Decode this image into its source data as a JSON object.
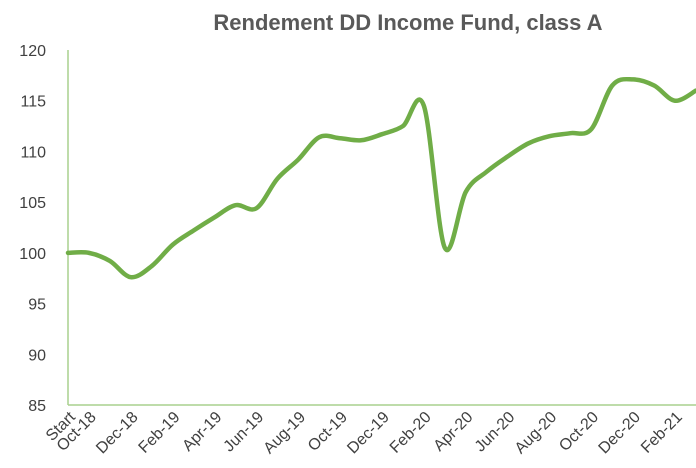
{
  "chart_data": {
    "type": "line",
    "title": "Rendement DD Income Fund, class A",
    "categories": [
      "Start",
      "Oct-18",
      null,
      "Dec-18",
      null,
      "Feb-19",
      null,
      "Apr-19",
      null,
      "Jun-19",
      null,
      "Aug-19",
      null,
      "Oct-19",
      null,
      "Dec-19",
      null,
      "Feb-20",
      null,
      "Apr-20",
      null,
      "Jun-20",
      null,
      "Aug-20",
      null,
      "Oct-20",
      null,
      "Dec-20",
      null,
      "Feb-21",
      null
    ],
    "series": [
      {
        "name": "Rendement",
        "color": "#70ad47",
        "values": [
          100,
          100,
          99.2,
          97.6,
          98.7,
          100.8,
          102.2,
          103.5,
          104.7,
          104.4,
          107.3,
          109.2,
          111.4,
          111.3,
          111.1,
          111.7,
          112.5,
          114.5,
          100.5,
          106.0,
          108.0,
          109.5,
          110.8,
          111.5,
          111.8,
          112.2,
          116.5,
          117.1,
          116.5,
          115.0,
          116.0
        ]
      }
    ],
    "ylim": [
      85,
      120
    ],
    "yticks": [
      85,
      90,
      95,
      100,
      105,
      110,
      115,
      120
    ],
    "grid": false
  }
}
